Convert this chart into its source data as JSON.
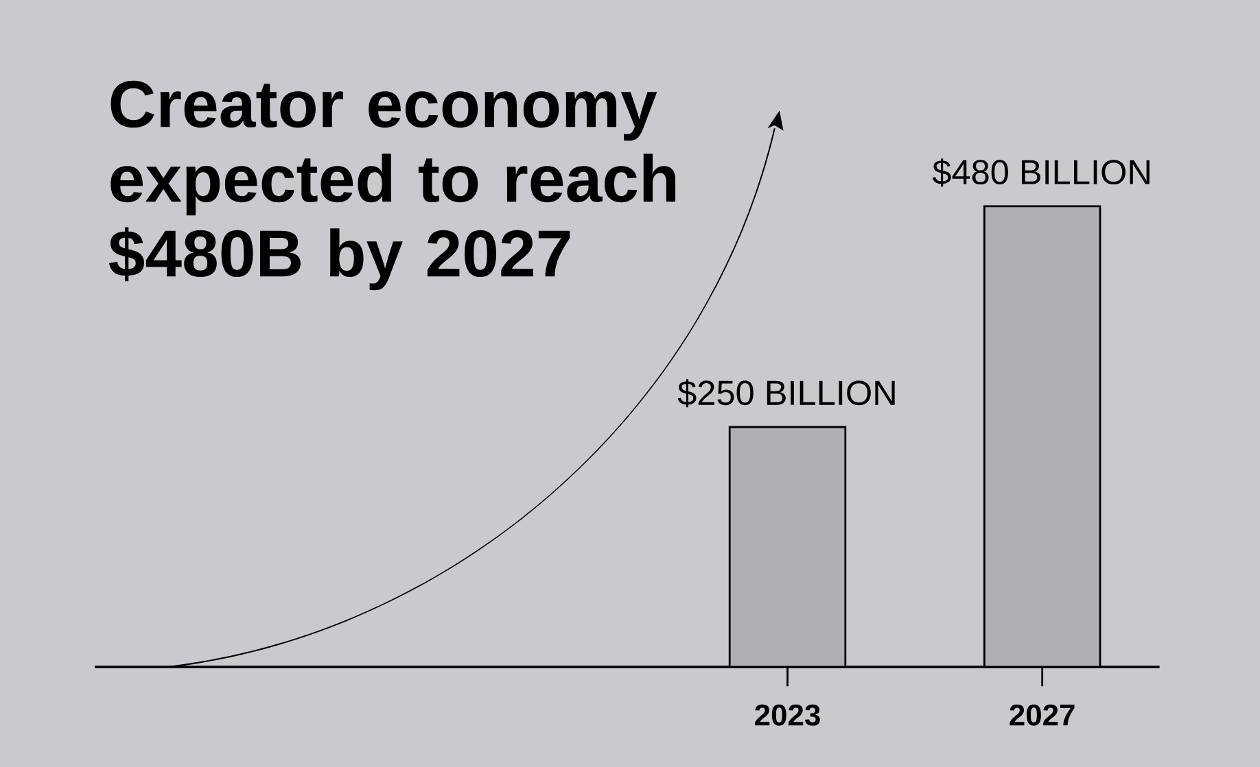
{
  "chart_data": {
    "type": "bar",
    "title": "Creator economy expected to reach $480B by 2027",
    "categories": [
      "2023",
      "2027"
    ],
    "values": [
      250,
      480
    ],
    "value_labels": [
      "$250 BILLION",
      "$480 BILLION"
    ],
    "color": "#aeb0b4"
  }
}
